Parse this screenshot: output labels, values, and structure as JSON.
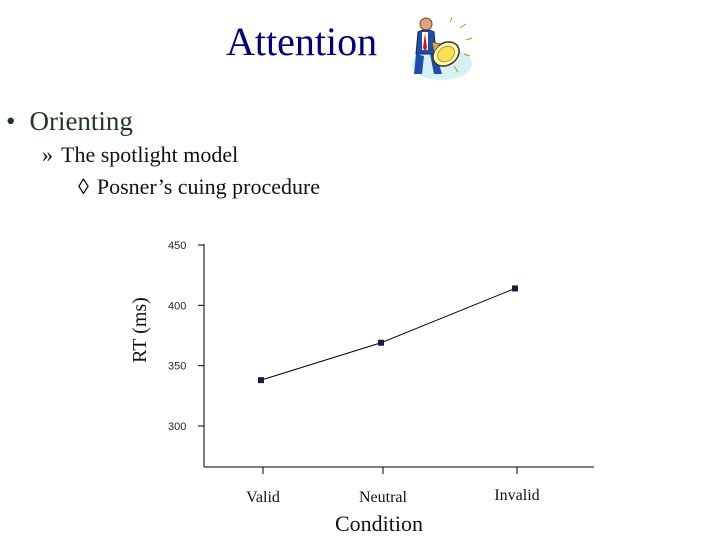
{
  "slide": {
    "title": "Attention",
    "bullet": "Orienting",
    "bullet_marker": "•",
    "sub_marker": "»",
    "sub_item": "The spotlight model",
    "subsub_marker": "◊",
    "subsub_item": "Posner’s cuing procedure",
    "clipart_icon": "man-with-spotlight-icon",
    "title_color": "#00007a"
  },
  "chart_data": {
    "type": "line",
    "categories": [
      "Valid",
      "Neutral",
      "Invalid"
    ],
    "values": [
      338,
      369,
      414
    ],
    "xlabel": "Condition",
    "ylabel": "RT (ms)",
    "yticks": [
      300,
      350,
      400,
      450
    ],
    "ylim": [
      300,
      450
    ],
    "grid": false,
    "legend": "none",
    "line_color": "#000000",
    "marker_color": "#1a1a40"
  }
}
